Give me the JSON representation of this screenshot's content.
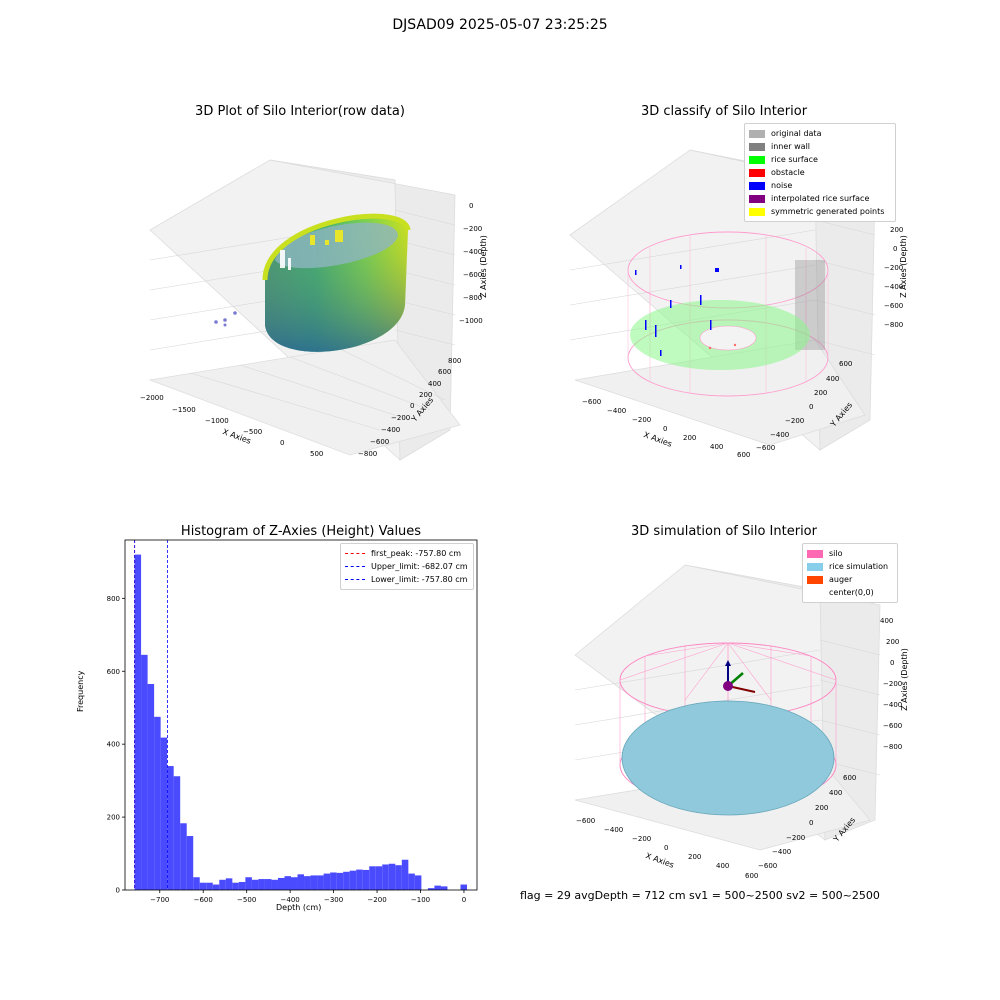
{
  "suptitle": "DJSAD09 2025-05-07 23:25:25",
  "panel1": {
    "title": "3D Plot of Silo Interior(row data)",
    "xlabel": "X Axies",
    "ylabel": "Y Axies",
    "zlabel": "Z Axies (Depth)",
    "xticks": [
      "−2000",
      "−1500",
      "−1000",
      "−500",
      "0",
      "500"
    ],
    "yticks": [
      "800",
      "600",
      "400",
      "200",
      "0",
      "−200",
      "−400",
      "−600",
      "−800"
    ],
    "zticks": [
      "0",
      "−200",
      "−400",
      "−600",
      "−800",
      "−1000"
    ]
  },
  "panel2": {
    "title": "3D classify of Silo Interior",
    "xlabel": "X Axies",
    "ylabel": "Y Axies",
    "zlabel": "Z Axies (Depth)",
    "xticks": [
      "−600",
      "−400",
      "−200",
      "0",
      "200",
      "400",
      "600"
    ],
    "yticks": [
      "600",
      "400",
      "200",
      "0",
      "−200",
      "−400",
      "−600"
    ],
    "zticks": [
      "200",
      "0",
      "−200",
      "−400",
      "−600",
      "−800"
    ],
    "legend": [
      {
        "label": "original data",
        "color": "#b0b0b0"
      },
      {
        "label": "inner wall",
        "color": "#808080"
      },
      {
        "label": "rice surface",
        "color": "#00ff00"
      },
      {
        "label": "obstacle",
        "color": "#ff0000"
      },
      {
        "label": "noise",
        "color": "#0000ff"
      },
      {
        "label": "interpolated rice surface",
        "color": "#800080"
      },
      {
        "label": "symmetric generated points",
        "color": "#ffff00"
      }
    ]
  },
  "panel4": {
    "title": "3D simulation of Silo Interior",
    "xlabel": "X Axies",
    "ylabel": "Y Axies",
    "zlabel": "Z Axies (Depth)",
    "xticks": [
      "−600",
      "−400",
      "−200",
      "0",
      "200",
      "400",
      "600"
    ],
    "yticks": [
      "600",
      "400",
      "200",
      "0",
      "−200",
      "−400",
      "−600"
    ],
    "zticks": [
      "400",
      "200",
      "0",
      "−200",
      "−400",
      "−600",
      "−800"
    ],
    "legend": [
      {
        "label": "silo",
        "color": "#ff69b4"
      },
      {
        "label": "rice simulation",
        "color": "#87ceeb"
      },
      {
        "label": "auger",
        "color": "#ff4500"
      },
      {
        "label": "center(0,0)",
        "color": "#ffffff"
      }
    ]
  },
  "footer": "flag = 29  avgDepth = 712 cm  sv1 = 500~2500  sv2 = 500~2500",
  "chart_data": {
    "type": "bar",
    "title": "Histogram of Z-Axies (Height) Values",
    "xlabel": "Depth (cm)",
    "ylabel": "Frequency",
    "xlim": [
      -780,
      30
    ],
    "ylim": [
      0,
      960
    ],
    "bin_width": 15,
    "bar_color": "#4a4aff",
    "bins": [
      {
        "x0": -758,
        "y": 920
      },
      {
        "x0": -743,
        "y": 645
      },
      {
        "x0": -728,
        "y": 565
      },
      {
        "x0": -713,
        "y": 475
      },
      {
        "x0": -698,
        "y": 418
      },
      {
        "x0": -683,
        "y": 340
      },
      {
        "x0": -668,
        "y": 312
      },
      {
        "x0": -653,
        "y": 183
      },
      {
        "x0": -638,
        "y": 148
      },
      {
        "x0": -623,
        "y": 35
      },
      {
        "x0": -608,
        "y": 20
      },
      {
        "x0": -593,
        "y": 20
      },
      {
        "x0": -578,
        "y": 15
      },
      {
        "x0": -563,
        "y": 28
      },
      {
        "x0": -548,
        "y": 32
      },
      {
        "x0": -533,
        "y": 20
      },
      {
        "x0": -518,
        "y": 22
      },
      {
        "x0": -503,
        "y": 35
      },
      {
        "x0": -488,
        "y": 28
      },
      {
        "x0": -473,
        "y": 30
      },
      {
        "x0": -458,
        "y": 30
      },
      {
        "x0": -443,
        "y": 28
      },
      {
        "x0": -428,
        "y": 33
      },
      {
        "x0": -413,
        "y": 38
      },
      {
        "x0": -398,
        "y": 35
      },
      {
        "x0": -383,
        "y": 43
      },
      {
        "x0": -368,
        "y": 38
      },
      {
        "x0": -353,
        "y": 40
      },
      {
        "x0": -338,
        "y": 40
      },
      {
        "x0": -323,
        "y": 45
      },
      {
        "x0": -308,
        "y": 48
      },
      {
        "x0": -293,
        "y": 47
      },
      {
        "x0": -278,
        "y": 50
      },
      {
        "x0": -263,
        "y": 53
      },
      {
        "x0": -248,
        "y": 56
      },
      {
        "x0": -233,
        "y": 55
      },
      {
        "x0": -218,
        "y": 65
      },
      {
        "x0": -203,
        "y": 65
      },
      {
        "x0": -188,
        "y": 70
      },
      {
        "x0": -173,
        "y": 72
      },
      {
        "x0": -158,
        "y": 68
      },
      {
        "x0": -143,
        "y": 83
      },
      {
        "x0": -128,
        "y": 45
      },
      {
        "x0": -113,
        "y": 40
      },
      {
        "x0": -98,
        "y": 0
      },
      {
        "x0": -83,
        "y": 5
      },
      {
        "x0": -68,
        "y": 12
      },
      {
        "x0": -53,
        "y": 10
      },
      {
        "x0": -38,
        "y": 0
      },
      {
        "x0": -23,
        "y": 0
      },
      {
        "x0": -8,
        "y": 15
      }
    ],
    "xticks": [
      -700,
      -600,
      -500,
      -400,
      -300,
      -200,
      -100,
      0
    ],
    "xtick_labels": [
      "−700",
      "−600",
      "−500",
      "−400",
      "−300",
      "−200",
      "−100",
      "0"
    ],
    "yticks": [
      0,
      200,
      400,
      600,
      800
    ],
    "ytick_labels": [
      "0",
      "200",
      "400",
      "600",
      "800"
    ],
    "vlines": [
      {
        "x": -757.8,
        "color": "#ff0000",
        "label": "first_peak: -757.80 cm"
      },
      {
        "x": -682.07,
        "color": "#0000ff",
        "label": "Upper_limit: -682.07 cm"
      },
      {
        "x": -757.8,
        "color": "#0000ff",
        "label": "Lower_limit: -757.80 cm"
      }
    ],
    "legend_position": "top-right"
  }
}
